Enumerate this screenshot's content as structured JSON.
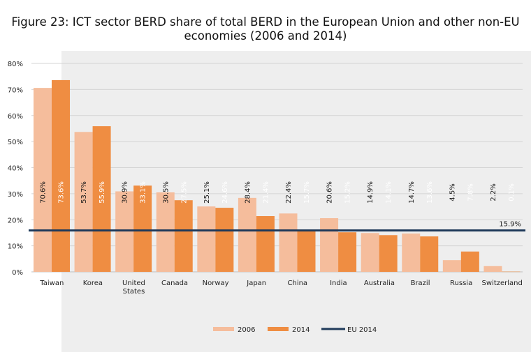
{
  "title_line1": "Figure 23: ICT sector BERD share of total BERD in the European Union and other non-EU",
  "title_line2": "economies (2006 and 2014)",
  "chart_data": {
    "type": "bar",
    "categories": [
      "Taiwan",
      "Korea",
      "United States",
      "Canada",
      "Norway",
      "Japan",
      "China",
      "India",
      "Australia",
      "Brazil",
      "Russia",
      "Switzerland"
    ],
    "category_lines": [
      [
        "Taiwan"
      ],
      [
        "Korea"
      ],
      [
        "United",
        "States"
      ],
      [
        "Canada"
      ],
      [
        "Norway"
      ],
      [
        "Japan"
      ],
      [
        "China"
      ],
      [
        "India"
      ],
      [
        "Australia"
      ],
      [
        "Brazil"
      ],
      [
        "Russia"
      ],
      [
        "Switzerland"
      ]
    ],
    "series": [
      {
        "name": "2006",
        "color": "#f5bd9c",
        "values": [
          70.6,
          53.7,
          30.9,
          30.5,
          25.1,
          28.4,
          22.4,
          20.6,
          14.9,
          14.7,
          4.5,
          2.2
        ],
        "labels": [
          "70.6%",
          "53.7%",
          "30.9%",
          "30.5%",
          "25.1%",
          "28.4%",
          "22.4%",
          "20.6%",
          "14.9%",
          "14.7%",
          "4.5%",
          "2.2%"
        ]
      },
      {
        "name": "2014",
        "color": "#ef8d42",
        "values": [
          73.6,
          55.9,
          33.1,
          27.5,
          24.6,
          21.4,
          15.7,
          15.2,
          14.1,
          13.6,
          7.8,
          0.1
        ],
        "labels": [
          "73.6%",
          "55.9%",
          "33.1%",
          "27.5%",
          "24.6%",
          "21.4%",
          "15.7%",
          "15.2%",
          "14.1%",
          "13.6%",
          "7.8%",
          "0.1%"
        ]
      }
    ],
    "reference_line": {
      "name": "EU 2014",
      "value": 15.9,
      "label": "15.9%",
      "color": "#1f3a5a"
    },
    "ylim": [
      0,
      80
    ],
    "yticks": [
      "0%",
      "10%",
      "20%",
      "30%",
      "40%",
      "50%",
      "60%",
      "70%",
      "80%"
    ],
    "grid": true,
    "legend_position": "bottom"
  }
}
